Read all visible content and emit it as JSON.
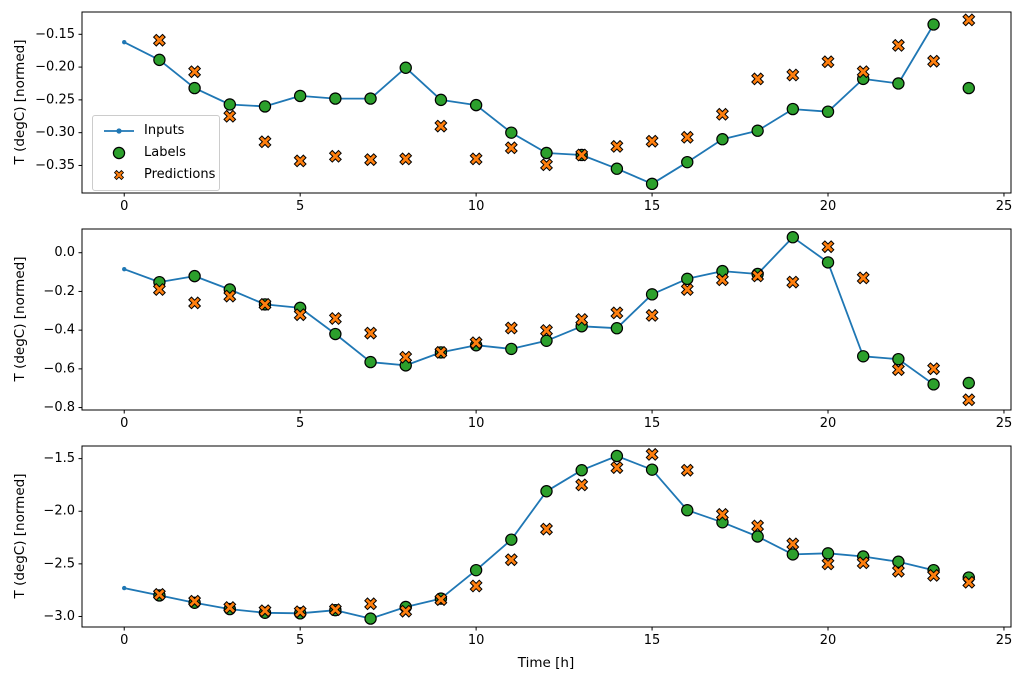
{
  "figure": {
    "background": "#ffffff"
  },
  "colors": {
    "inputs": "#1f77b4",
    "labels": "#2ca02c",
    "predictions": "#ff7f0e",
    "marker_edge": "#000000",
    "spine": "#000000",
    "legend_border": "#cccccc"
  },
  "legend": {
    "items": [
      {
        "label": "Inputs",
        "marker": "line-dot",
        "color": "#1f77b4"
      },
      {
        "label": "Labels",
        "marker": "circle",
        "color": "#2ca02c"
      },
      {
        "label": "Predictions",
        "marker": "X",
        "color": "#ff7f0e"
      }
    ]
  },
  "chart_data": [
    {
      "type": "line",
      "title": "",
      "ylabel": "T (degC) [normed]",
      "xlabel": "",
      "xlim": [
        -1.2,
        25.2
      ],
      "ylim": [
        -0.392,
        -0.116
      ],
      "xticks": [
        0,
        5,
        10,
        15,
        20,
        25
      ],
      "xtick_labels": [
        "0",
        "5",
        "10",
        "15",
        "20",
        "25"
      ],
      "yticks": [
        -0.15,
        -0.2,
        -0.25,
        -0.3,
        -0.35
      ],
      "ytick_labels": [
        "−0.15",
        "−0.20",
        "−0.25",
        "−0.30",
        "−0.35"
      ],
      "grid": false,
      "legend_position": "center-left",
      "series": [
        {
          "name": "Inputs",
          "kind": "line",
          "marker": "dot",
          "color": "#1f77b4",
          "x": [
            0,
            1,
            2,
            3,
            4,
            5,
            6,
            7,
            8,
            9,
            10,
            11,
            12,
            13,
            14,
            15,
            16,
            17,
            18,
            19,
            20,
            21,
            22,
            23
          ],
          "y": [
            -0.162,
            -0.189,
            -0.232,
            -0.257,
            -0.26,
            -0.244,
            -0.248,
            -0.248,
            -0.201,
            -0.25,
            -0.258,
            -0.3,
            -0.331,
            -0.334,
            -0.355,
            -0.378,
            -0.345,
            -0.31,
            -0.297,
            -0.264,
            -0.268,
            -0.218,
            -0.225,
            -0.135
          ]
        },
        {
          "name": "Labels",
          "kind": "scatter",
          "marker": "circle",
          "color": "#2ca02c",
          "edge": "#000000",
          "x": [
            1,
            2,
            3,
            4,
            5,
            6,
            7,
            8,
            9,
            10,
            11,
            12,
            13,
            14,
            15,
            16,
            17,
            18,
            19,
            20,
            21,
            22,
            23,
            24
          ],
          "y": [
            -0.189,
            -0.232,
            -0.257,
            -0.26,
            -0.244,
            -0.248,
            -0.248,
            -0.201,
            -0.25,
            -0.258,
            -0.3,
            -0.331,
            -0.334,
            -0.355,
            -0.378,
            -0.345,
            -0.31,
            -0.297,
            -0.264,
            -0.268,
            -0.218,
            -0.225,
            -0.135,
            -0.232
          ]
        },
        {
          "name": "Predictions",
          "kind": "scatter",
          "marker": "X",
          "color": "#ff7f0e",
          "edge": "#000000",
          "x": [
            1,
            2,
            3,
            4,
            5,
            6,
            7,
            8,
            9,
            10,
            11,
            12,
            13,
            14,
            15,
            16,
            17,
            18,
            19,
            20,
            21,
            22,
            23,
            24
          ],
          "y": [
            -0.159,
            -0.207,
            -0.275,
            -0.314,
            -0.343,
            -0.336,
            -0.341,
            -0.34,
            -0.29,
            -0.34,
            -0.323,
            -0.349,
            -0.334,
            -0.321,
            -0.313,
            -0.307,
            -0.272,
            -0.218,
            -0.212,
            -0.192,
            -0.207,
            -0.167,
            -0.191,
            -0.128
          ]
        }
      ]
    },
    {
      "type": "line",
      "title": "",
      "ylabel": "T (degC) [normed]",
      "xlabel": "",
      "xlim": [
        -1.2,
        25.2
      ],
      "ylim": [
        -0.8125,
        0.1225
      ],
      "xticks": [
        0,
        5,
        10,
        15,
        20,
        25
      ],
      "xtick_labels": [
        "0",
        "5",
        "10",
        "15",
        "20",
        "25"
      ],
      "yticks": [
        0.0,
        -0.2,
        -0.4,
        -0.6,
        -0.8
      ],
      "ytick_labels": [
        "0.0",
        "−0.2",
        "−0.4",
        "−0.6",
        "−0.8"
      ],
      "grid": false,
      "legend_position": "none",
      "series": [
        {
          "name": "Inputs",
          "kind": "line",
          "marker": "dot",
          "color": "#1f77b4",
          "x": [
            0,
            1,
            2,
            3,
            4,
            5,
            6,
            7,
            8,
            9,
            10,
            11,
            12,
            13,
            14,
            15,
            16,
            17,
            18,
            19,
            20,
            21,
            22,
            23
          ],
          "y": [
            -0.085,
            -0.152,
            -0.121,
            -0.19,
            -0.267,
            -0.285,
            -0.42,
            -0.565,
            -0.582,
            -0.515,
            -0.478,
            -0.497,
            -0.455,
            -0.38,
            -0.39,
            -0.215,
            -0.135,
            -0.095,
            -0.11,
            0.08,
            -0.05,
            -0.535,
            -0.55,
            -0.68
          ]
        },
        {
          "name": "Labels",
          "kind": "scatter",
          "marker": "circle",
          "color": "#2ca02c",
          "edge": "#000000",
          "x": [
            1,
            2,
            3,
            4,
            5,
            6,
            7,
            8,
            9,
            10,
            11,
            12,
            13,
            14,
            15,
            16,
            17,
            18,
            19,
            20,
            21,
            22,
            23,
            24
          ],
          "y": [
            -0.152,
            -0.121,
            -0.19,
            -0.267,
            -0.285,
            -0.42,
            -0.565,
            -0.582,
            -0.515,
            -0.478,
            -0.497,
            -0.455,
            -0.38,
            -0.39,
            -0.215,
            -0.135,
            -0.095,
            -0.11,
            0.08,
            -0.05,
            -0.535,
            -0.55,
            -0.68,
            -0.673
          ]
        },
        {
          "name": "Predictions",
          "kind": "scatter",
          "marker": "X",
          "color": "#ff7f0e",
          "edge": "#000000",
          "x": [
            1,
            2,
            3,
            4,
            5,
            6,
            7,
            8,
            9,
            10,
            11,
            12,
            13,
            14,
            15,
            16,
            17,
            18,
            19,
            20,
            21,
            22,
            23,
            24
          ],
          "y": [
            -0.19,
            -0.259,
            -0.224,
            -0.267,
            -0.32,
            -0.34,
            -0.415,
            -0.54,
            -0.515,
            -0.465,
            -0.389,
            -0.402,
            -0.345,
            -0.311,
            -0.324,
            -0.19,
            -0.14,
            -0.12,
            -0.152,
            0.031,
            -0.13,
            -0.604,
            -0.599,
            -0.76
          ]
        }
      ]
    },
    {
      "type": "line",
      "title": "",
      "ylabel": "T (degC) [normed]",
      "xlabel": "Time [h]",
      "xlim": [
        -1.2,
        25.2
      ],
      "ylim": [
        -3.1,
        -1.38
      ],
      "xticks": [
        0,
        5,
        10,
        15,
        20,
        25
      ],
      "xtick_labels": [
        "0",
        "5",
        "10",
        "15",
        "20",
        "25"
      ],
      "yticks": [
        -1.5,
        -2.0,
        -2.5,
        -3.0
      ],
      "ytick_labels": [
        "−1.5",
        "−2.0",
        "−2.5",
        "−3.0"
      ],
      "grid": false,
      "legend_position": "none",
      "series": [
        {
          "name": "Inputs",
          "kind": "line",
          "marker": "dot",
          "color": "#1f77b4",
          "x": [
            0,
            1,
            2,
            3,
            4,
            5,
            6,
            7,
            8,
            9,
            10,
            11,
            12,
            13,
            14,
            15,
            16,
            17,
            18,
            19,
            20,
            21,
            22,
            23
          ],
          "y": [
            -2.73,
            -2.8,
            -2.87,
            -2.93,
            -2.965,
            -2.97,
            -2.94,
            -3.02,
            -2.91,
            -2.83,
            -2.56,
            -2.27,
            -1.81,
            -1.61,
            -1.475,
            -1.605,
            -1.99,
            -2.105,
            -2.24,
            -2.41,
            -2.4,
            -2.43,
            -2.48,
            -2.56
          ]
        },
        {
          "name": "Labels",
          "kind": "scatter",
          "marker": "circle",
          "color": "#2ca02c",
          "edge": "#000000",
          "x": [
            1,
            2,
            3,
            4,
            5,
            6,
            7,
            8,
            9,
            10,
            11,
            12,
            13,
            14,
            15,
            16,
            17,
            18,
            19,
            20,
            21,
            22,
            23,
            24
          ],
          "y": [
            -2.8,
            -2.87,
            -2.93,
            -2.965,
            -2.97,
            -2.94,
            -3.02,
            -2.91,
            -2.83,
            -2.56,
            -2.27,
            -1.81,
            -1.61,
            -1.475,
            -1.605,
            -1.99,
            -2.105,
            -2.24,
            -2.41,
            -2.4,
            -2.43,
            -2.48,
            -2.56,
            -2.63
          ]
        },
        {
          "name": "Predictions",
          "kind": "scatter",
          "marker": "X",
          "color": "#ff7f0e",
          "edge": "#000000",
          "x": [
            1,
            2,
            3,
            4,
            5,
            6,
            7,
            8,
            9,
            10,
            11,
            12,
            13,
            14,
            15,
            16,
            17,
            18,
            19,
            20,
            21,
            22,
            23,
            24
          ],
          "y": [
            -2.79,
            -2.855,
            -2.915,
            -2.945,
            -2.955,
            -2.935,
            -2.88,
            -2.95,
            -2.84,
            -2.71,
            -2.46,
            -2.17,
            -1.75,
            -1.585,
            -1.46,
            -1.61,
            -2.03,
            -2.14,
            -2.31,
            -2.5,
            -2.49,
            -2.57,
            -2.61,
            -2.675
          ]
        }
      ]
    }
  ]
}
